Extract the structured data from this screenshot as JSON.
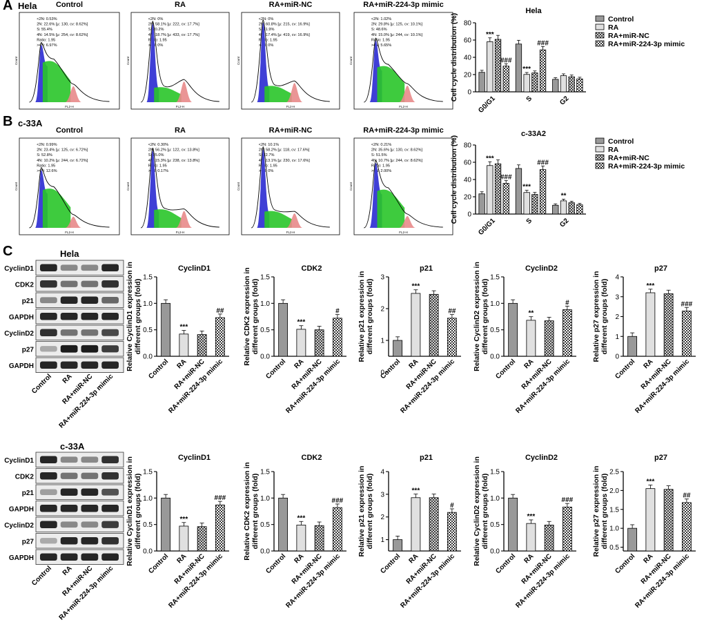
{
  "panel_letters": [
    "A",
    "B",
    "C"
  ],
  "cell_lines": {
    "hela": "Hela",
    "c33a": "c-33A"
  },
  "groups": [
    "Control",
    "RA",
    "RA+miR-NC",
    "RA+miR-224-3p mimic"
  ],
  "colors": {
    "control": "#999999",
    "ra": "#e0e0e0",
    "nc": "#6f6f6f",
    "mimic": "#f4f4f4",
    "fc_g1": "#3f3fd6",
    "fc_s": "#29c529",
    "fc_g2": "#e88a8a"
  },
  "flow": {
    "axis_x_label": "FL2-H",
    "axis_y_label": "Count",
    "hela": [
      {
        "title": "Control",
        "stats": [
          "<2N: 0.53%",
          "2N: 22.6%  [μ: 130, cv: 8.62%]",
          "S: 55.4%",
          "4N: 14.5%  [μ: 254, cv: 8.62%]",
          "Ratio: 1.95",
          ">4N: 6.97%"
        ]
      },
      {
        "title": "RA",
        "stats": [
          "<2N: 0%",
          "2N: 58.1%  [μ: 222, cv: 17.7%]",
          "S: 20.2%",
          "4N: 18.7%  [μ: 433, cv: 17.7%]",
          "Ratio: 1.95",
          ">4N: 0%"
        ]
      },
      {
        "title": "RA+miR-NC",
        "stats": [
          "<2N: 0%",
          "2N: 60.8%  [μ: 215, cv: 16.9%]",
          "S: 21.9%",
          "4N: 17.4%  [μ: 419, cv: 16.9%]",
          "Ratio: 1.95",
          ">4N: 0%"
        ]
      },
      {
        "title": "RA+miR-224-3p mimic",
        "stats": [
          "<2N: 1.02%",
          "2N: 29.8%  [μ: 125, cv: 10.1%]",
          "S: 48.6%",
          "4N: 15.0%  [μ: 244, cv: 10.1%]",
          "Ratio: 1.95",
          ">4N: 5.65%"
        ]
      }
    ],
    "c33a": [
      {
        "title": "Control",
        "stats": [
          "<2N: 0.99%",
          "2N: 23.4%  [μ: 125, cv: 6.72%]",
          "S: 52.8%",
          "4N: 10.2%  [μ: 244, cv: 6.72%]",
          "Ratio: 1.95",
          ">4N: 12.6%"
        ]
      },
      {
        "title": "RA",
        "stats": [
          "<2N: 0.30%",
          "2N: 56.2%  [μ: 122, cv: 13.8%]",
          "S: 25.0%",
          "4N: 15.3%  [μ: 238, cv: 13.8%]",
          "Ratio: 1.95",
          ">4N: 0.17%"
        ]
      },
      {
        "title": "RA+miR-NC",
        "stats": [
          "<2N: 10.1%",
          "2N: 58.2%  [μ: 118, cv: 17.6%]",
          "S: 22.7%",
          "4N: 13.1%  [μ: 230, cv: 17.6%]",
          "Ratio: 1.95",
          ">4N: 0%"
        ]
      },
      {
        "title": "RA+miR-224-3p mimic",
        "stats": [
          "<2N: 0.21%",
          "2N: 35.6%  [μ: 130, cv: 8.62%]",
          "S: 51.5%",
          "4N: 10.7%  [μ: 244, cv: 8.62%]",
          "Ratio: 1.95",
          ">4N: 2.00%"
        ]
      }
    ]
  },
  "western_blot": {
    "hela": {
      "label": "Hela",
      "rows": [
        "CyclinD1",
        "CDK2",
        "p21",
        "GAPDH",
        "CyclinD2",
        "p27",
        "GAPDH"
      ]
    },
    "c33a": {
      "label": "c-33A",
      "rows": [
        "CyclinD1",
        "CDK2",
        "p21",
        "GAPDH",
        "CyclinD2",
        "p27",
        "GAPDH"
      ]
    }
  },
  "chart_data": [
    {
      "id": "hela-cellcycle",
      "type": "bar",
      "title": "Hela",
      "ylabel": "Cell cycle distribution (%)",
      "ylim": [
        0,
        80
      ],
      "yticks": [
        0,
        20,
        40,
        60,
        80
      ],
      "categories": [
        "G0/G1",
        "S",
        "G2"
      ],
      "legend": "top-right",
      "series": [
        {
          "name": "Control",
          "values": [
            22.6,
            55.4,
            14.5
          ]
        },
        {
          "name": "RA",
          "values": [
            58.1,
            20.2,
            18.7
          ]
        },
        {
          "name": "RA+miR-NC",
          "values": [
            60.8,
            21.9,
            17.4
          ]
        },
        {
          "name": "RA+miR-224-3p mimic",
          "values": [
            29.8,
            48.6,
            15.0
          ]
        }
      ],
      "annotations": [
        {
          "category": 0,
          "series": 1,
          "text": "***"
        },
        {
          "category": 0,
          "series": 3,
          "text": "###"
        },
        {
          "category": 1,
          "series": 1,
          "text": "***"
        },
        {
          "category": 1,
          "series": 3,
          "text": "###"
        }
      ]
    },
    {
      "id": "c33a-cellcycle",
      "type": "bar",
      "title": "c-33A2",
      "ylabel": "Cell cycle distribution (%)",
      "ylim": [
        0,
        80
      ],
      "yticks": [
        0,
        20,
        40,
        60,
        80
      ],
      "categories": [
        "G0/G1",
        "S",
        "G2"
      ],
      "legend": "top-right",
      "series": [
        {
          "name": "Control",
          "values": [
            23.4,
            52.8,
            10.2
          ]
        },
        {
          "name": "RA",
          "values": [
            56.2,
            25.0,
            15.3
          ]
        },
        {
          "name": "RA+miR-NC",
          "values": [
            58.2,
            22.7,
            13.1
          ]
        },
        {
          "name": "RA+miR-224-3p mimic",
          "values": [
            35.6,
            51.5,
            10.7
          ]
        }
      ],
      "annotations": [
        {
          "category": 0,
          "series": 1,
          "text": "***"
        },
        {
          "category": 0,
          "series": 3,
          "text": "###"
        },
        {
          "category": 1,
          "series": 1,
          "text": "***"
        },
        {
          "category": 1,
          "series": 3,
          "text": "###"
        },
        {
          "category": 2,
          "series": 1,
          "text": "**"
        }
      ]
    },
    {
      "id": "hela-cyclind1",
      "type": "bar",
      "title": "CyclinD1",
      "ylabel": "Relative CyclinD1 expression in different groups (fold)",
      "ylim": [
        0,
        1.5
      ],
      "yticks": [
        0.0,
        0.5,
        1.0,
        1.5
      ],
      "categories": [
        "Control",
        "RA",
        "RA+miR-NC",
        "RA+miR-224-3p mimic"
      ],
      "values": [
        1.0,
        0.42,
        0.41,
        0.73
      ],
      "annotations": [
        "",
        "***",
        "",
        "##"
      ]
    },
    {
      "id": "hela-cdk2",
      "type": "bar",
      "title": "CDK2",
      "ylabel": "Relative CDK2 expression in different groups (fold)",
      "ylim": [
        0,
        1.5
      ],
      "yticks": [
        0.0,
        0.5,
        1.0,
        1.5
      ],
      "categories": [
        "Control",
        "RA",
        "RA+miR-NC",
        "RA+miR-224-3p mimic"
      ],
      "values": [
        1.0,
        0.51,
        0.5,
        0.72
      ],
      "annotations": [
        "",
        "***",
        "",
        "#"
      ]
    },
    {
      "id": "hela-p21",
      "type": "bar",
      "title": "p21",
      "ylabel": "Relative p21 expression in different groups (fold)",
      "ylim": [
        0,
        3
      ],
      "yticks": [
        0,
        1,
        2,
        3
      ],
      "ybase": 0.5,
      "categories": [
        "Control",
        "RA",
        "RA+miR-NC",
        "RA+miR-224-3p mimic"
      ],
      "values": [
        1.0,
        2.48,
        2.45,
        1.7
      ],
      "annotations": [
        "",
        "***",
        "",
        "##"
      ]
    },
    {
      "id": "hela-cyclind2",
      "type": "bar",
      "title": "CyclinD2",
      "ylabel": "Relative CyclinD2 expression in different groups (fold)",
      "ylim": [
        0,
        1.5
      ],
      "yticks": [
        0.0,
        0.5,
        1.0,
        1.5
      ],
      "categories": [
        "Control",
        "RA",
        "RA+miR-NC",
        "RA+miR-224-3p mimic"
      ],
      "values": [
        1.0,
        0.68,
        0.67,
        0.88
      ],
      "annotations": [
        "",
        "**",
        "",
        "#"
      ]
    },
    {
      "id": "hela-p27",
      "type": "bar",
      "title": "p27",
      "ylabel": "Relative p27 expression in different groups (fold)",
      "ylim": [
        0,
        4
      ],
      "yticks": [
        0,
        1,
        2,
        3,
        4
      ],
      "categories": [
        "Control",
        "RA",
        "RA+miR-NC",
        "RA+miR-224-3p mimic"
      ],
      "values": [
        1.0,
        3.2,
        3.15,
        2.28
      ],
      "annotations": [
        "",
        "***",
        "",
        "###"
      ]
    },
    {
      "id": "c33a-cyclind1",
      "type": "bar",
      "title": "CyclinD1",
      "ylabel": "Relative CyclinD1 expression in different groups (fold)",
      "ylim": [
        0,
        1.5
      ],
      "yticks": [
        0.0,
        0.5,
        1.0,
        1.5
      ],
      "categories": [
        "Control",
        "RA",
        "RA+miR-NC",
        "RA+miR-224-3p mimic"
      ],
      "values": [
        1.0,
        0.47,
        0.46,
        0.87
      ],
      "annotations": [
        "",
        "***",
        "",
        "###"
      ]
    },
    {
      "id": "c33a-cdk2",
      "type": "bar",
      "title": "CDK2",
      "ylabel": "Relative CDK2 expression in different groups (fold)",
      "ylim": [
        0,
        1.5
      ],
      "yticks": [
        0.0,
        0.5,
        1.0,
        1.5
      ],
      "categories": [
        "Control",
        "RA",
        "RA+miR-NC",
        "RA+miR-224-3p mimic"
      ],
      "values": [
        1.0,
        0.49,
        0.48,
        0.82
      ],
      "annotations": [
        "",
        "***",
        "",
        "###"
      ]
    },
    {
      "id": "c33a-p21",
      "type": "bar",
      "title": "p21",
      "ylabel": "Relative p21 expression in different groups (fold)",
      "ylim": [
        0,
        4
      ],
      "yticks": [
        1,
        2,
        3,
        4
      ],
      "ybase": 0.5,
      "categories": [
        "Control",
        "RA",
        "RA+miR-NC",
        "RA+miR-224-3p mimic"
      ],
      "values": [
        1.0,
        2.85,
        2.85,
        2.2
      ],
      "annotations": [
        "",
        "***",
        "",
        "#"
      ]
    },
    {
      "id": "c33a-cyclind2",
      "type": "bar",
      "title": "CyclinD2",
      "ylabel": "Relative CyclinD2 expression in different groups (fold)",
      "ylim": [
        0,
        1.5
      ],
      "yticks": [
        0.0,
        0.5,
        1.0,
        1.5
      ],
      "categories": [
        "Control",
        "RA",
        "RA+miR-NC",
        "RA+miR-224-3p mimic"
      ],
      "values": [
        1.0,
        0.52,
        0.49,
        0.83
      ],
      "annotations": [
        "",
        "***",
        "",
        "###"
      ]
    },
    {
      "id": "c33a-p27",
      "type": "bar",
      "title": "p27",
      "ylabel": "Relative p27 expression in different groups (fold)",
      "ylim": [
        0,
        2.5
      ],
      "yticks": [
        0.5,
        1.0,
        1.5,
        2.0,
        2.5
      ],
      "ybase": 0.4,
      "categories": [
        "Control",
        "RA",
        "RA+miR-NC",
        "RA+miR-224-3p mimic"
      ],
      "values": [
        1.0,
        2.05,
        2.03,
        1.68
      ],
      "annotations": [
        "",
        "***",
        "",
        "##"
      ]
    }
  ]
}
